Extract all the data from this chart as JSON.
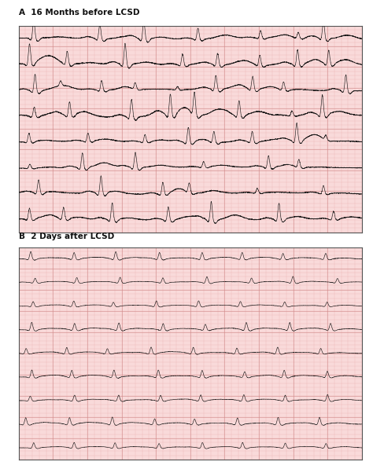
{
  "panel_A_label": "A  16 Months before LCSD",
  "panel_B_label": "B  2 Days after LCSD",
  "ecg_paper_color": "#f9dada",
  "grid_minor_color": "#e8aaaa",
  "grid_major_color": "#d08888",
  "ecg_color": "#111111",
  "outer_bg": "#ffffff",
  "border_color": "#555555",
  "label_color": "#111111",
  "figure_width": 4.74,
  "figure_height": 5.97,
  "dpi": 100,
  "label_fontsize": 7.5,
  "num_rows_A": 8,
  "num_rows_B": 9
}
